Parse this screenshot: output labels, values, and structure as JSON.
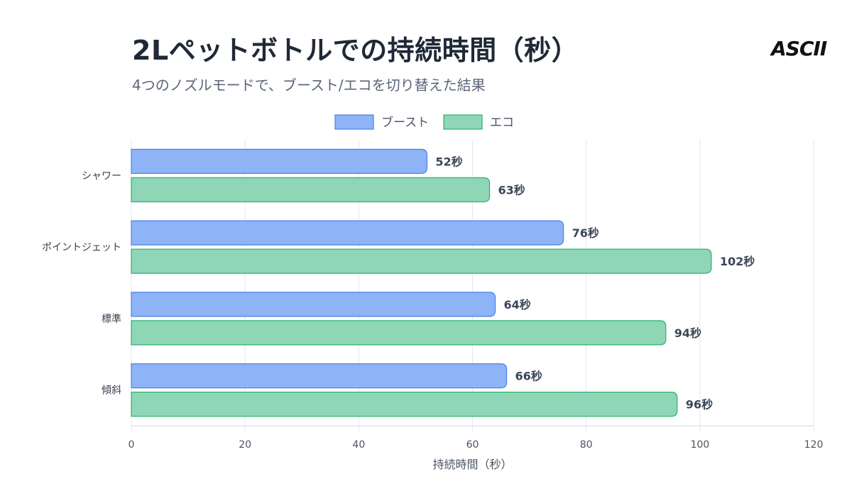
{
  "header": {
    "title": "2Lペットボトルでの持続時間（秒）",
    "subtitle": "4つのノズルモードで、ブースト/エコを切り替えた結果",
    "brand": "ASCII"
  },
  "chart_data": {
    "type": "bar",
    "orientation": "horizontal",
    "categories": [
      "シャワー",
      "ポイントジェット",
      "標準",
      "傾斜"
    ],
    "series": [
      {
        "name": "ブースト",
        "values": [
          52,
          76,
          64,
          66
        ],
        "color": "#8fb3f7",
        "border": "#4a80e8"
      },
      {
        "name": "エコ",
        "values": [
          63,
          102,
          94,
          96
        ],
        "color": "#8ed6b6",
        "border": "#2fb170"
      }
    ],
    "value_suffix": "秒",
    "xlabel": "持続時間（秒）",
    "ylabel": "",
    "xlim": [
      0,
      120
    ],
    "xticks": [
      0,
      20,
      40,
      60,
      80,
      100,
      120
    ],
    "grid": true,
    "legend_position": "top-center"
  }
}
